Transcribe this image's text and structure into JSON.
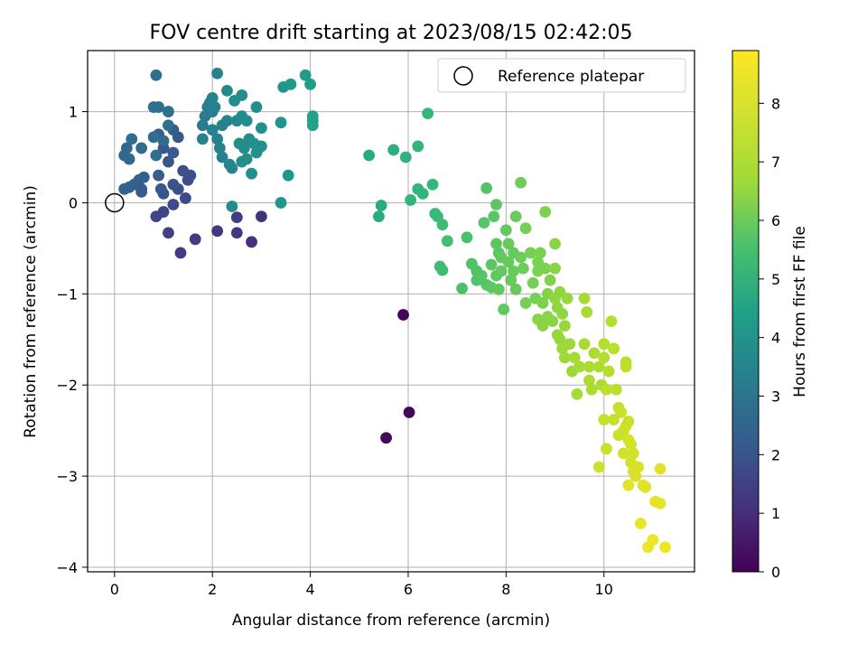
{
  "chart_data": {
    "type": "scatter",
    "title": "FOV centre drift starting at 2023/08/15 02:42:05",
    "xlabel": "Angular distance from reference (arcmin)",
    "ylabel": "Rotation from reference (arcmin)",
    "xlim": [
      -0.55,
      11.85
    ],
    "ylim": [
      -4.05,
      1.67
    ],
    "xticks": [
      0,
      2,
      4,
      6,
      8,
      10
    ],
    "yticks": [
      -4,
      -3,
      -2,
      -1,
      0,
      1
    ],
    "grid": true,
    "legend": {
      "location": "upper right",
      "entries": [
        "Reference platepar"
      ]
    },
    "colorbar": {
      "label": "Hours from first FF file",
      "colormap": "viridis",
      "range": [
        0,
        8.9
      ],
      "ticks": [
        0,
        1,
        2,
        3,
        4,
        5,
        6,
        7,
        8
      ]
    },
    "reference_point": {
      "x": 0,
      "y": 0
    },
    "series": [
      {
        "points": [
          [
            5.9,
            -1.23,
            0.1
          ],
          [
            6.02,
            -2.3,
            0.15
          ],
          [
            5.55,
            -2.58,
            0.2
          ],
          [
            2.8,
            -0.43,
            1.2
          ],
          [
            2.5,
            -0.33,
            1.4
          ],
          [
            2.1,
            -0.31,
            1.5
          ],
          [
            3.0,
            -0.15,
            1.3
          ],
          [
            2.5,
            -0.16,
            1.6
          ],
          [
            1.65,
            -0.4,
            1.6
          ],
          [
            1.1,
            -0.33,
            1.7
          ],
          [
            1.35,
            -0.55,
            1.6
          ],
          [
            0.85,
            -0.15,
            1.8
          ],
          [
            1.0,
            -0.1,
            1.9
          ],
          [
            1.2,
            -0.02,
            2.0
          ],
          [
            1.45,
            0.05,
            2.0
          ],
          [
            1.55,
            0.3,
            2.1
          ],
          [
            1.3,
            0.15,
            2.2
          ],
          [
            1.5,
            0.25,
            2.1
          ],
          [
            1.0,
            0.1,
            2.3
          ],
          [
            1.2,
            0.2,
            2.3
          ],
          [
            1.4,
            0.35,
            2.2
          ],
          [
            1.1,
            0.45,
            2.4
          ],
          [
            1.0,
            0.6,
            2.4
          ],
          [
            1.2,
            0.55,
            2.5
          ],
          [
            1.3,
            0.72,
            2.5
          ],
          [
            1.2,
            0.8,
            2.6
          ],
          [
            0.9,
            0.75,
            2.6
          ],
          [
            0.9,
            0.3,
            2.6
          ],
          [
            0.95,
            0.15,
            2.5
          ],
          [
            0.55,
            0.15,
            2.6
          ],
          [
            0.5,
            0.25,
            2.7
          ],
          [
            0.4,
            0.2,
            2.7
          ],
          [
            0.3,
            0.17,
            2.8
          ],
          [
            0.2,
            0.15,
            2.8
          ],
          [
            0.6,
            0.28,
            2.7
          ],
          [
            0.55,
            0.12,
            2.6
          ],
          [
            0.2,
            0.52,
            3.0
          ],
          [
            0.25,
            0.6,
            3.0
          ],
          [
            0.3,
            0.48,
            3.0
          ],
          [
            0.35,
            0.7,
            3.1
          ],
          [
            0.55,
            0.6,
            3.1
          ],
          [
            0.85,
            0.52,
            3.2
          ],
          [
            0.8,
            0.72,
            3.2
          ],
          [
            1.0,
            0.68,
            3.1
          ],
          [
            1.1,
            0.85,
            3.2
          ],
          [
            0.8,
            1.05,
            3.3
          ],
          [
            0.9,
            1.05,
            3.3
          ],
          [
            1.1,
            1.0,
            3.3
          ],
          [
            0.85,
            1.4,
            3.3
          ],
          [
            1.8,
            0.85,
            3.7
          ],
          [
            1.85,
            0.95,
            3.8
          ],
          [
            1.9,
            1.05,
            3.8
          ],
          [
            1.95,
            1.1,
            3.8
          ],
          [
            2.0,
            1.0,
            3.8
          ],
          [
            1.8,
            0.7,
            3.9
          ],
          [
            2.0,
            0.8,
            3.9
          ],
          [
            2.1,
            0.7,
            3.9
          ],
          [
            2.2,
            0.85,
            3.9
          ],
          [
            2.3,
            0.9,
            4.0
          ],
          [
            2.15,
            0.6,
            4.0
          ],
          [
            2.2,
            0.5,
            4.0
          ],
          [
            2.1,
            1.42,
            4.0
          ],
          [
            2.05,
            1.05,
            4.0
          ],
          [
            2.0,
            1.15,
            4.0
          ],
          [
            2.35,
            0.42,
            4.1
          ],
          [
            2.4,
            0.38,
            4.1
          ],
          [
            2.5,
            0.9,
            4.1
          ],
          [
            2.4,
            -0.04,
            4.3
          ],
          [
            2.3,
            1.23,
            4.2
          ],
          [
            2.45,
            1.12,
            4.3
          ],
          [
            2.6,
            1.18,
            4.3
          ],
          [
            2.6,
            0.95,
            4.3
          ],
          [
            2.7,
            0.9,
            4.3
          ],
          [
            2.75,
            0.7,
            4.3
          ],
          [
            2.65,
            0.6,
            4.3
          ],
          [
            2.55,
            0.65,
            4.4
          ],
          [
            2.6,
            0.45,
            4.4
          ],
          [
            2.7,
            0.48,
            4.4
          ],
          [
            2.8,
            0.32,
            4.4
          ],
          [
            2.9,
            1.05,
            4.4
          ],
          [
            2.95,
            0.6,
            4.5
          ],
          [
            2.9,
            0.55,
            4.5
          ],
          [
            2.85,
            0.65,
            4.5
          ],
          [
            3.0,
            0.82,
            4.5
          ],
          [
            3.0,
            0.62,
            4.5
          ],
          [
            3.4,
            0.88,
            4.6
          ],
          [
            3.45,
            1.27,
            4.7
          ],
          [
            3.55,
            0.3,
            4.7
          ],
          [
            3.4,
            0.0,
            4.7
          ],
          [
            3.6,
            1.3,
            4.8
          ],
          [
            3.9,
            1.4,
            4.9
          ],
          [
            4.0,
            1.3,
            5.0
          ],
          [
            4.05,
            0.95,
            5.1
          ],
          [
            4.05,
            0.9,
            5.1
          ],
          [
            4.05,
            0.85,
            5.1
          ],
          [
            5.2,
            0.52,
            5.4
          ],
          [
            5.4,
            -0.15,
            5.4
          ],
          [
            5.45,
            -0.03,
            5.5
          ],
          [
            5.7,
            0.58,
            5.6
          ],
          [
            5.95,
            0.5,
            5.7
          ],
          [
            6.2,
            0.62,
            5.8
          ],
          [
            6.05,
            0.03,
            5.8
          ],
          [
            6.2,
            0.15,
            5.8
          ],
          [
            6.3,
            0.1,
            5.9
          ],
          [
            6.4,
            0.98,
            5.9
          ],
          [
            6.5,
            0.2,
            5.9
          ],
          [
            6.55,
            -0.12,
            6.0
          ],
          [
            6.6,
            -0.15,
            6.0
          ],
          [
            6.7,
            -0.24,
            6.1
          ],
          [
            6.65,
            -0.7,
            6.1
          ],
          [
            6.7,
            -0.74,
            6.1
          ],
          [
            6.8,
            -0.42,
            6.2
          ],
          [
            7.1,
            -0.94,
            6.3
          ],
          [
            7.2,
            -0.38,
            6.3
          ],
          [
            7.3,
            -0.67,
            6.4
          ],
          [
            7.4,
            -0.75,
            6.4
          ],
          [
            7.4,
            -0.85,
            6.4
          ],
          [
            7.5,
            -0.8,
            6.5
          ],
          [
            7.55,
            -0.22,
            6.5
          ],
          [
            7.6,
            0.16,
            6.5
          ],
          [
            7.6,
            -0.9,
            6.5
          ],
          [
            7.7,
            -0.68,
            6.6
          ],
          [
            7.7,
            -0.93,
            6.6
          ],
          [
            7.8,
            -0.02,
            6.6
          ],
          [
            7.75,
            -0.15,
            6.6
          ],
          [
            7.8,
            -0.45,
            6.6
          ],
          [
            7.85,
            -0.55,
            6.6
          ],
          [
            7.8,
            -0.8,
            6.7
          ],
          [
            7.9,
            -0.6,
            6.7
          ],
          [
            7.9,
            -0.75,
            6.7
          ],
          [
            7.85,
            -0.95,
            6.7
          ],
          [
            7.95,
            -1.17,
            6.7
          ],
          [
            8.0,
            -0.3,
            6.7
          ],
          [
            8.05,
            -0.45,
            6.8
          ],
          [
            8.05,
            -0.65,
            6.8
          ],
          [
            8.1,
            -0.85,
            6.8
          ],
          [
            8.15,
            -0.55,
            6.8
          ],
          [
            8.15,
            -0.75,
            6.8
          ],
          [
            8.2,
            -0.95,
            6.8
          ],
          [
            8.2,
            -0.15,
            6.8
          ],
          [
            8.3,
            0.22,
            6.9
          ],
          [
            8.3,
            -0.6,
            6.9
          ],
          [
            8.35,
            -0.72,
            6.9
          ],
          [
            8.4,
            -0.28,
            7.0
          ],
          [
            8.4,
            -1.1,
            7.0
          ],
          [
            8.5,
            -0.55,
            7.0
          ],
          [
            8.55,
            -0.88,
            7.0
          ],
          [
            8.6,
            -1.05,
            7.0
          ],
          [
            8.65,
            -0.65,
            7.1
          ],
          [
            8.65,
            -0.75,
            7.1
          ],
          [
            8.7,
            -0.55,
            7.1
          ],
          [
            8.75,
            -1.1,
            7.1
          ],
          [
            8.8,
            -0.72,
            7.1
          ],
          [
            8.8,
            -0.1,
            7.1
          ],
          [
            8.85,
            -1.0,
            7.2
          ],
          [
            8.9,
            -0.85,
            7.2
          ],
          [
            8.95,
            -1.3,
            7.3
          ],
          [
            9.0,
            -0.45,
            7.3
          ],
          [
            9.0,
            -0.72,
            7.3
          ],
          [
            8.65,
            -1.28,
            7.3
          ],
          [
            8.75,
            -1.35,
            7.3
          ],
          [
            8.85,
            -1.25,
            7.3
          ],
          [
            9.0,
            -1.05,
            7.4
          ],
          [
            9.05,
            -1.15,
            7.4
          ],
          [
            9.1,
            -0.98,
            7.4
          ],
          [
            9.15,
            -1.22,
            7.4
          ],
          [
            9.2,
            -1.35,
            7.5
          ],
          [
            9.25,
            -1.05,
            7.5
          ],
          [
            9.05,
            -1.45,
            7.5
          ],
          [
            9.1,
            -1.5,
            7.5
          ],
          [
            9.15,
            -1.6,
            7.6
          ],
          [
            9.2,
            -1.7,
            7.6
          ],
          [
            9.3,
            -1.55,
            7.6
          ],
          [
            9.35,
            -1.85,
            7.6
          ],
          [
            9.4,
            -1.7,
            7.7
          ],
          [
            9.5,
            -1.8,
            7.7
          ],
          [
            9.45,
            -2.1,
            7.7
          ],
          [
            9.6,
            -1.05,
            7.7
          ],
          [
            9.6,
            -1.55,
            7.7
          ],
          [
            9.65,
            -1.2,
            7.7
          ],
          [
            9.7,
            -1.8,
            7.8
          ],
          [
            9.7,
            -1.95,
            7.8
          ],
          [
            9.75,
            -2.05,
            7.8
          ],
          [
            9.8,
            -1.65,
            7.8
          ],
          [
            9.9,
            -1.8,
            7.8
          ],
          [
            9.95,
            -2.0,
            7.8
          ],
          [
            10.0,
            -1.55,
            7.9
          ],
          [
            10.1,
            -1.85,
            7.9
          ],
          [
            10.15,
            -1.3,
            7.9
          ],
          [
            10.2,
            -1.6,
            7.9
          ],
          [
            10.0,
            -1.7,
            7.9
          ],
          [
            10.25,
            -2.05,
            8.0
          ],
          [
            10.05,
            -2.05,
            8.0
          ],
          [
            10.0,
            -2.38,
            8.1
          ],
          [
            10.2,
            -2.38,
            8.1
          ],
          [
            10.3,
            -2.25,
            8.1
          ],
          [
            10.3,
            -2.55,
            8.2
          ],
          [
            10.35,
            -2.3,
            8.2
          ],
          [
            10.4,
            -2.5,
            8.2
          ],
          [
            10.45,
            -2.45,
            8.2
          ],
          [
            10.5,
            -2.4,
            8.2
          ],
          [
            10.5,
            -2.6,
            8.3
          ],
          [
            10.55,
            -2.65,
            8.3
          ],
          [
            10.6,
            -2.75,
            8.3
          ],
          [
            10.55,
            -2.85,
            8.3
          ],
          [
            10.6,
            -2.95,
            8.4
          ],
          [
            10.65,
            -3.0,
            8.4
          ],
          [
            10.7,
            -2.9,
            8.4
          ],
          [
            10.4,
            -2.75,
            8.3
          ],
          [
            10.05,
            -2.7,
            8.2
          ],
          [
            9.9,
            -2.9,
            8.2
          ],
          [
            10.5,
            -3.1,
            8.5
          ],
          [
            10.8,
            -3.1,
            8.5
          ],
          [
            10.85,
            -3.12,
            8.5
          ],
          [
            10.75,
            -3.52,
            8.6
          ],
          [
            11.05,
            -3.28,
            8.6
          ],
          [
            11.15,
            -3.3,
            8.6
          ],
          [
            11.15,
            -2.92,
            8.5
          ],
          [
            10.9,
            -3.78,
            8.7
          ],
          [
            11.0,
            -3.7,
            8.7
          ],
          [
            11.25,
            -3.78,
            8.7
          ],
          [
            10.2,
            -1.6,
            8.0
          ],
          [
            10.45,
            -1.75,
            8.0
          ],
          [
            10.45,
            -1.8,
            8.0
          ]
        ]
      }
    ]
  }
}
